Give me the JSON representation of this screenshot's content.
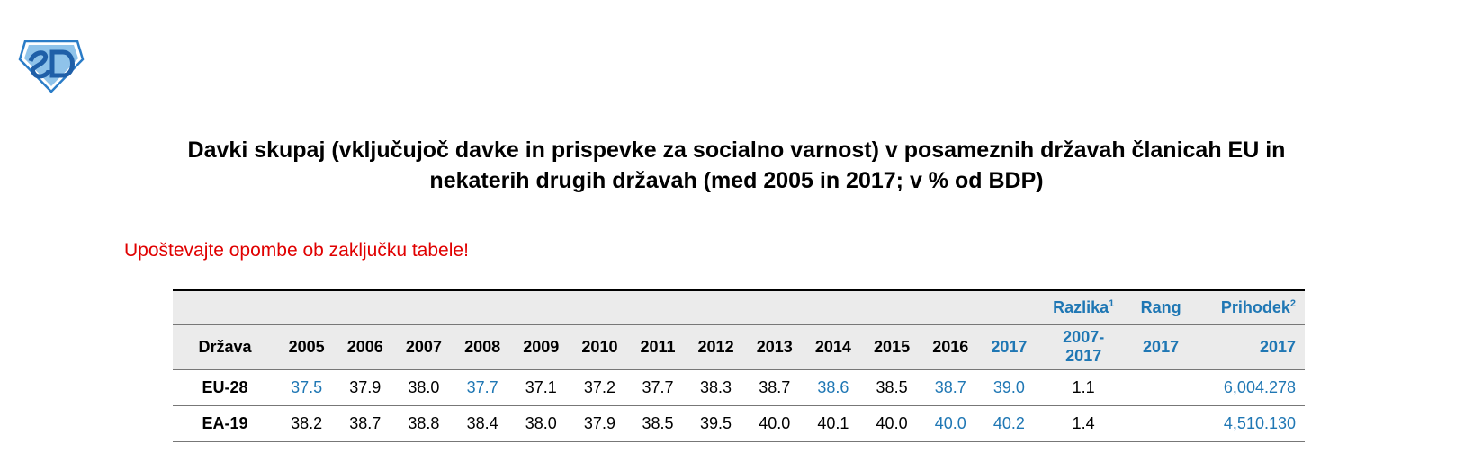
{
  "document": {
    "title_line1": "Davki skupaj (vključujoč davke in prispevke za socialno varnost) v posameznih državah članicah EU in",
    "title_line2": "nekaterih drugih državah (med 2005 in 2017; v % od BDP)",
    "note": "Upoštevajte opombe ob zaključku tabele!"
  },
  "logo": {
    "icon": "sd-shield-logo",
    "color": "#2a7cc7"
  },
  "colors": {
    "accent": "#1f77b4",
    "note": "#e00000"
  },
  "table": {
    "header1": {
      "razlika": "Razlika",
      "razlika_sup": "1",
      "rang": "Rang",
      "prihodek": "Prihodek",
      "prihodek_sup": "2"
    },
    "header2": {
      "drzava": "Država",
      "years": [
        "2005",
        "2006",
        "2007",
        "2008",
        "2009",
        "2010",
        "2011",
        "2012",
        "2013",
        "2014",
        "2015",
        "2016",
        "2017"
      ],
      "razlika_line1": "2007-",
      "razlika_line2": "2017",
      "rang": "2017",
      "prihodek": "2017"
    },
    "rows": [
      {
        "country": "EU-28",
        "values": [
          "37.5",
          "37.9",
          "38.0",
          "37.7",
          "37.1",
          "37.2",
          "37.7",
          "38.3",
          "38.7",
          "38.6",
          "38.5",
          "38.7",
          "39.0"
        ],
        "blue": [
          true,
          false,
          false,
          true,
          false,
          false,
          false,
          false,
          false,
          true,
          false,
          true,
          true
        ],
        "razlika": "1.1",
        "rang": "",
        "prihodek": "6,004.278"
      },
      {
        "country": "EA-19",
        "values": [
          "38.2",
          "38.7",
          "38.8",
          "38.4",
          "38.0",
          "37.9",
          "38.5",
          "39.5",
          "40.0",
          "40.1",
          "40.0",
          "40.0",
          "40.2"
        ],
        "blue": [
          false,
          false,
          false,
          false,
          false,
          false,
          false,
          false,
          false,
          false,
          false,
          true,
          true
        ],
        "razlika": "1.4",
        "rang": "",
        "prihodek": "4,510.130"
      }
    ]
  }
}
